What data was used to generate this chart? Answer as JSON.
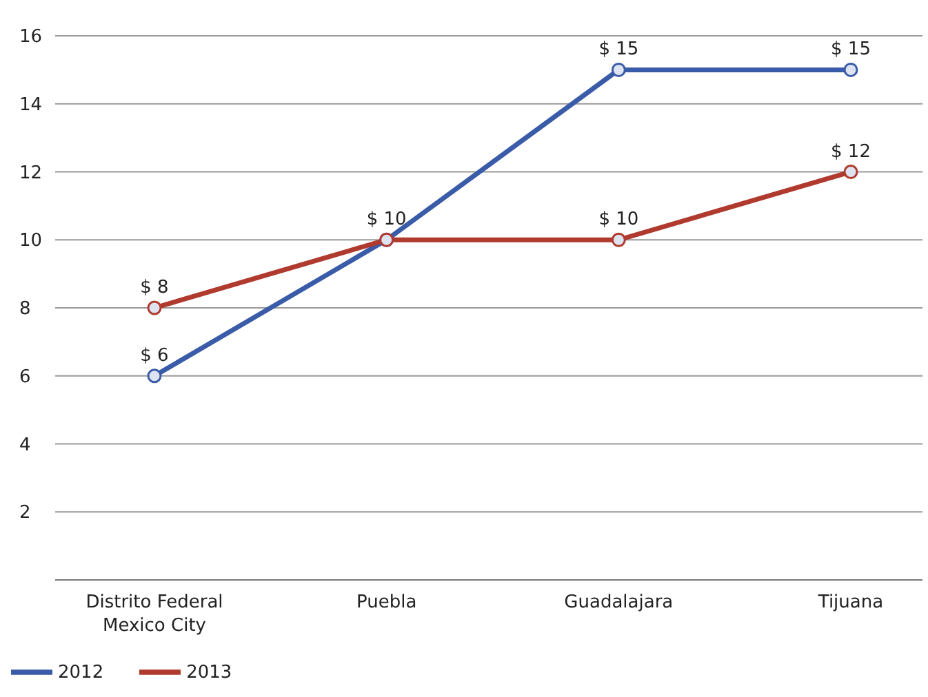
{
  "chart_data": {
    "type": "line",
    "categories": [
      "Distrito Federal\nMexico City",
      "Puebla",
      "Guadalajara",
      "Tijuana"
    ],
    "series": [
      {
        "name": "2012",
        "color": "#3a5ba8",
        "values": [
          6,
          10,
          15,
          15
        ],
        "value_labels": [
          "$ 6",
          null,
          "$ 15",
          "$ 15"
        ]
      },
      {
        "name": "2013",
        "color": "#b03a2e",
        "values": [
          8,
          10,
          10,
          12
        ],
        "value_labels": [
          "$ 8",
          "$ 10",
          "$ 10",
          "$ 12"
        ]
      }
    ],
    "ylim": [
      0,
      16
    ],
    "yticks": [
      2,
      4,
      6,
      8,
      10,
      12,
      14,
      16
    ],
    "grid": "y",
    "legend": "bottom left",
    "marker": "circle",
    "line_style": "solid"
  }
}
